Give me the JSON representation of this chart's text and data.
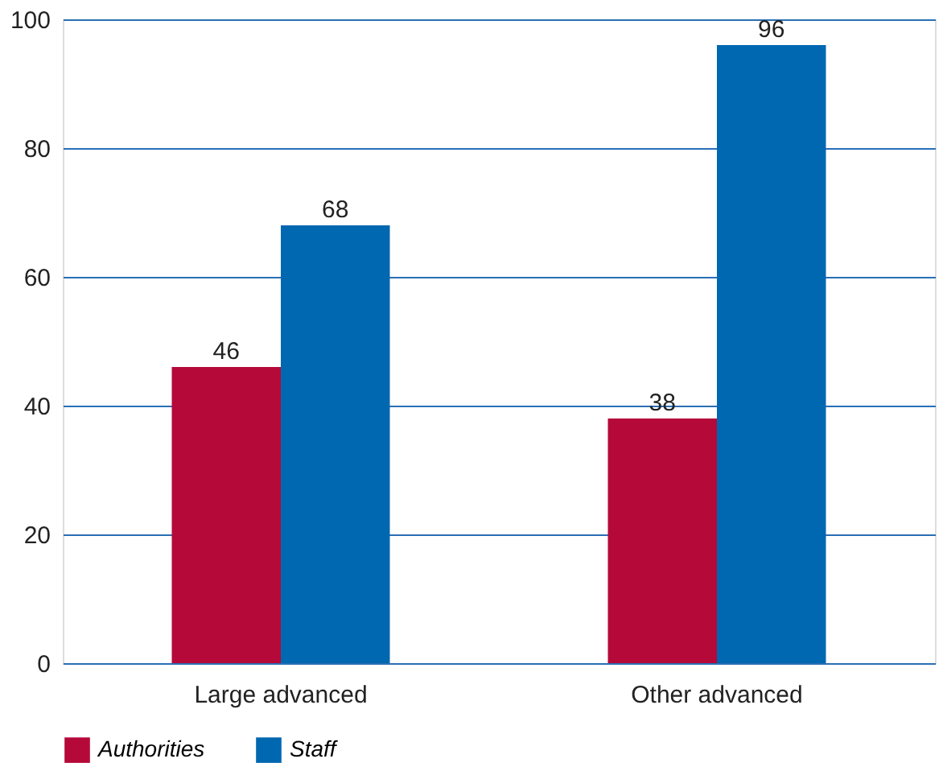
{
  "chart_data": {
    "type": "bar",
    "categories": [
      "Large advanced",
      "Other advanced"
    ],
    "series": [
      {
        "name": "Authorities",
        "color": "#b5093a",
        "values": [
          46,
          38
        ]
      },
      {
        "name": "Staff",
        "color": "#0067b1",
        "values": [
          68,
          96
        ]
      }
    ],
    "ylim": [
      0,
      100
    ],
    "yticks": [
      0,
      20,
      40,
      60,
      80,
      100
    ],
    "grid": "y",
    "legend": "bottom",
    "data_labels": true
  }
}
